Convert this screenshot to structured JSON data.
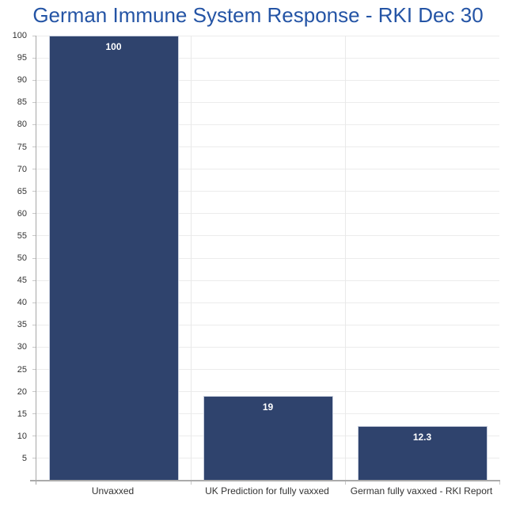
{
  "title": "German Immune System Response - RKI Dec 30",
  "colors": {
    "title": "#2454a5",
    "bar": "#2f436d",
    "bar_border": "#c7cedd",
    "gridline": "#ececec",
    "vertical_gridline": "#e9e9e9",
    "axis_line": "#a6a6a6",
    "baseline": "#ababab",
    "tick": "#c8c8c8",
    "axis_label": "#333333",
    "value_label": "#ffffff",
    "background": "#ffffff"
  },
  "chart_data": {
    "type": "bar",
    "title": "German Immune System Response - RKI Dec 30",
    "categories": [
      "Unvaxxed",
      "UK Prediction for fully vaxxed",
      "German fully vaxxed - RKI Report"
    ],
    "values": [
      100,
      19,
      12.3
    ],
    "value_labels": [
      "100",
      "19",
      "12.3"
    ],
    "xlabel": "",
    "ylabel": "",
    "ylim": [
      0,
      100
    ],
    "ytick_interval": 5,
    "yticks": [
      100,
      95,
      90,
      85,
      80,
      75,
      70,
      65,
      60,
      55,
      50,
      45,
      40,
      35,
      30,
      25,
      20,
      15,
      10,
      5
    ],
    "grid": true,
    "legend": false
  }
}
